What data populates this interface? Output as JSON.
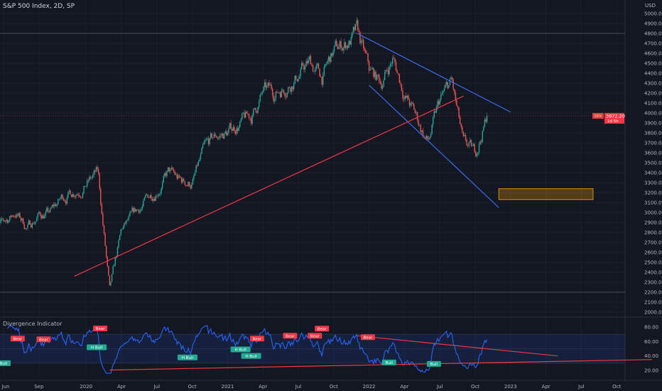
{
  "header": {
    "title": "S&P 500 Index, 2D, SP",
    "currency": "USD"
  },
  "indicator": {
    "title": "Divergence Indicator",
    "yticks": [
      "80.00",
      "60.00",
      "40.00",
      "20.00"
    ]
  },
  "price_label": {
    "symbol": "SPX",
    "price": "3972.20",
    "countdown": "1d 5h",
    "color": "#f23645"
  },
  "colors": {
    "background": "#131722",
    "up": "#26a69a",
    "down": "#ef5350",
    "trend_blue": "#3d6bf0",
    "trend_red": "#f23645",
    "rsi": "#2962ff",
    "zone": "#f7a600"
  },
  "chart_data": {
    "type": "candlestick",
    "timeframe": "2D",
    "ylim": [
      2000,
      5000
    ],
    "yticks": [
      "5000.00",
      "4900.00",
      "4800.00",
      "4700.00",
      "4600.00",
      "4500.00",
      "4400.00",
      "4300.00",
      "4200.00",
      "4100.00",
      "4000.00",
      "3900.00",
      "3800.00",
      "3700.00",
      "3600.00",
      "3500.00",
      "3400.00",
      "3300.00",
      "3200.00",
      "3100.00",
      "3000.00",
      "2900.00",
      "2800.00",
      "2700.00",
      "2600.00",
      "2500.00",
      "2400.00",
      "2300.00",
      "2200.00",
      "2100.00",
      "2000.00"
    ],
    "xticks": [
      "Jun",
      "Sep",
      "2020",
      "Apr",
      "Jul",
      "Oct",
      "2021",
      "Apr",
      "Jul",
      "Oct",
      "2022",
      "Apr",
      "Jul",
      "Oct",
      "2023",
      "Apr",
      "Jul",
      "Oct"
    ],
    "price_path": [
      [
        "2019-05",
        2780
      ],
      [
        "2019-07",
        3000
      ],
      [
        "2019-08",
        2850
      ],
      [
        "2019-09",
        2980
      ],
      [
        "2019-10",
        3000
      ],
      [
        "2019-11",
        3150
      ],
      [
        "2019-12",
        3230
      ],
      [
        "2020-01",
        3300
      ],
      [
        "2020-02",
        3390
      ],
      [
        "2020-03",
        2200
      ],
      [
        "2020-04",
        2800
      ],
      [
        "2020-06",
        3100
      ],
      [
        "2020-08",
        3400
      ],
      [
        "2020-09",
        3300
      ],
      [
        "2020-10",
        3300
      ],
      [
        "2020-11",
        3600
      ],
      [
        "2020-12",
        3750
      ],
      [
        "2021-01",
        3800
      ],
      [
        "2021-02",
        3900
      ],
      [
        "2021-03",
        3950
      ],
      [
        "2021-04",
        4200
      ],
      [
        "2021-05",
        4200
      ],
      [
        "2021-06",
        4300
      ],
      [
        "2021-07",
        4400
      ],
      [
        "2021-08",
        4500
      ],
      [
        "2021-09",
        4350
      ],
      [
        "2021-10",
        4600
      ],
      [
        "2021-11",
        4700
      ],
      [
        "2021-12",
        4790
      ],
      [
        "2022-01",
        4400
      ],
      [
        "2022-02",
        4300
      ],
      [
        "2022-03",
        4550
      ],
      [
        "2022-04",
        4200
      ],
      [
        "2022-05",
        3950
      ],
      [
        "2022-06",
        3700
      ],
      [
        "2022-07",
        4100
      ],
      [
        "2022-08",
        4300
      ],
      [
        "2022-09",
        3650
      ],
      [
        "2022-10",
        3580
      ],
      [
        "2022-11",
        3972
      ]
    ],
    "drawings": {
      "channel_upper": [
        [
          "2021-12",
          4800
        ],
        [
          "2023-01",
          4010
        ]
      ],
      "channel_lower": [
        [
          "2022-01",
          4280
        ],
        [
          "2022-12",
          3050
        ]
      ],
      "support_line": [
        [
          "2019-12",
          2360
        ],
        [
          "2022-09",
          4170
        ]
      ],
      "zone_box": {
        "from": "2022-12",
        "to": "2023-08",
        "top": 3240,
        "bottom": 3130
      },
      "levels": [
        4800,
        2200
      ]
    },
    "rsi_band": [
      30,
      70
    ],
    "rsi_ylim": [
      15,
      85
    ],
    "rsi_trendlines": [
      [
        [
          "2020-03",
          20.5
        ],
        [
          "2024-01",
          35
        ]
      ],
      [
        [
          "2021-12",
          68
        ],
        [
          "2023-05",
          40
        ]
      ]
    ],
    "divergence_labels": [
      {
        "text": "Bull",
        "m": 0,
        "v": 30,
        "kind": "bull"
      },
      {
        "text": "Bear",
        "m": 1.2,
        "v": 64,
        "kind": "bear"
      },
      {
        "text": "Bear",
        "m": 3.4,
        "v": 63,
        "kind": "bear"
      },
      {
        "text": "Bear",
        "m": 8.2,
        "v": 78,
        "kind": "bear"
      },
      {
        "text": "H Bull",
        "m": 7.9,
        "v": 52,
        "kind": "bull"
      },
      {
        "text": "H Bull",
        "m": 15.6,
        "v": 38,
        "kind": "bull"
      },
      {
        "text": "H Bull",
        "m": 20.1,
        "v": 49,
        "kind": "bull"
      },
      {
        "text": "H Bull",
        "m": 21,
        "v": 42,
        "kind": "bull"
      },
      {
        "text": "Bear",
        "m": 21.5,
        "v": 64,
        "kind": "bear"
      },
      {
        "text": "Bear",
        "m": 24.3,
        "v": 68,
        "kind": "bear"
      },
      {
        "text": "Bear",
        "m": 26.4,
        "v": 68,
        "kind": "bear"
      },
      {
        "text": "Bear",
        "m": 27,
        "v": 66,
        "kind": "bear"
      },
      {
        "text": "Bear",
        "m": 30.9,
        "v": 66,
        "kind": "bear"
      },
      {
        "text": "Bull",
        "m": 32.7,
        "v": 31,
        "kind": "bull"
      },
      {
        "text": "Bull",
        "m": 36.5,
        "v": 29,
        "kind": "bull"
      }
    ]
  }
}
